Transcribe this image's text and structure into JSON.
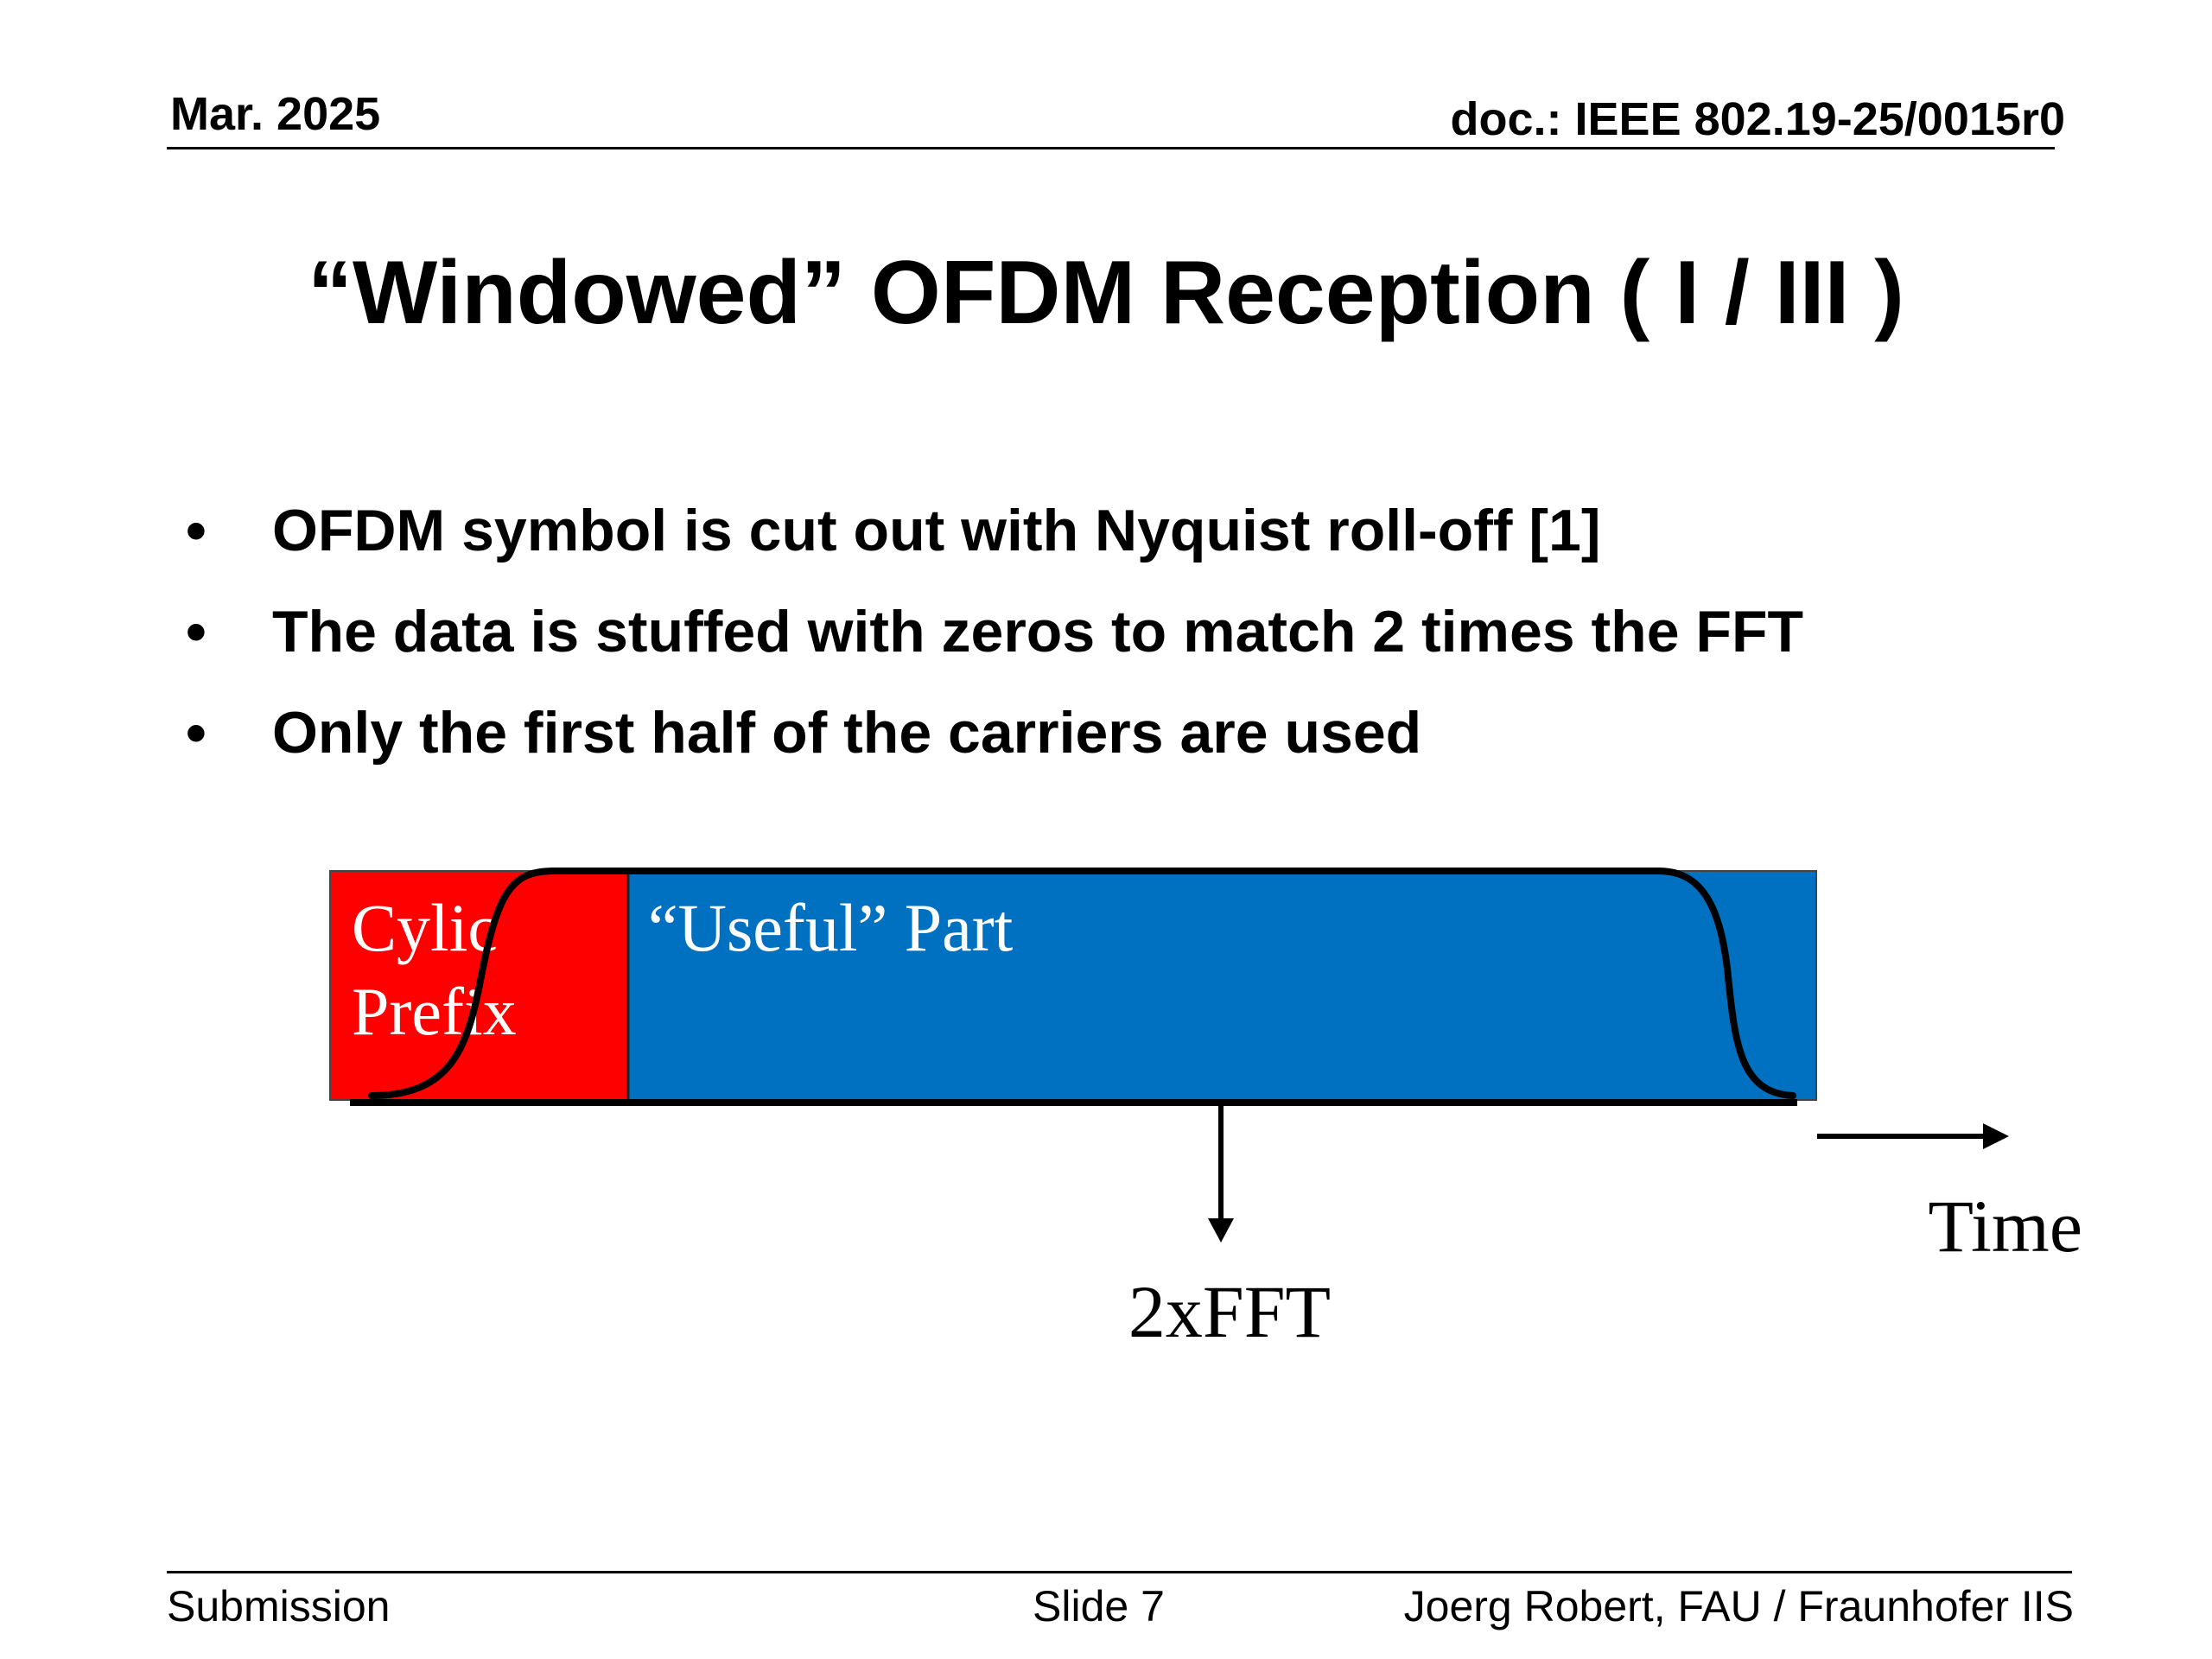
{
  "header": {
    "date": "Mar. 2025",
    "doc": "doc.: IEEE 802.19-25/0015r0"
  },
  "title": "“Windowed” OFDM Reception ( I / III )",
  "bullets": [
    "OFDM symbol is cut out with Nyquist roll-off [1]",
    "The data is stuffed with zeros to match 2 times the FFT",
    "Only the first half of the carriers are used"
  ],
  "bullet_glyph": "•",
  "diagram": {
    "cp_label_line1": "Cylic",
    "cp_label_line2": "Prefix",
    "useful_label": "“Useful” Part",
    "fft_label": "2xFFT",
    "time_label": "Time",
    "colors": {
      "cyclic_prefix": "#ff0000",
      "useful_part": "#0070c0",
      "window_curve": "#000000"
    }
  },
  "footer": {
    "left": "Submission",
    "center": "Slide 7",
    "right": "Joerg Robert, FAU / Fraunhofer IIS"
  }
}
